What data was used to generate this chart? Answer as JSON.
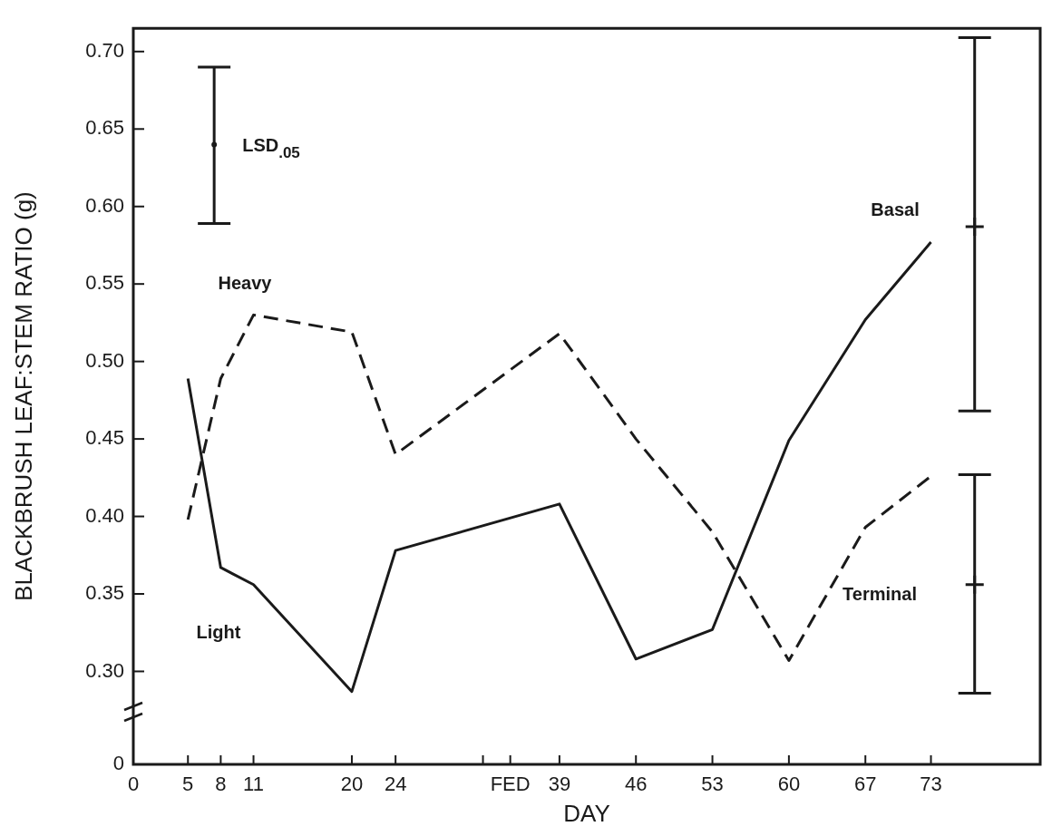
{
  "chart_data": {
    "type": "line",
    "xlabel": "DAY",
    "ylabel": "BLACKBRUSH LEAF:STEM RATIO (g)",
    "xlim": [
      0,
      83
    ],
    "ylim": [
      0.24,
      0.715
    ],
    "xticks": [
      0,
      5,
      8,
      11,
      20,
      24,
      {
        "value": 32,
        "label": null
      },
      {
        "value": 34.5,
        "label": "FED"
      },
      39,
      46,
      53,
      60,
      67,
      73
    ],
    "yticks": [
      {
        "value": 0.24,
        "label": "0"
      },
      {
        "value": 0.3,
        "label": "0.30"
      },
      {
        "value": 0.35,
        "label": "0.35"
      },
      {
        "value": 0.4,
        "label": "0.40"
      },
      {
        "value": 0.45,
        "label": "0.45"
      },
      {
        "value": 0.5,
        "label": "0.50"
      },
      {
        "value": 0.55,
        "label": "0.55"
      },
      {
        "value": 0.6,
        "label": "0.60"
      },
      {
        "value": 0.65,
        "label": "0.65"
      },
      {
        "value": 0.7,
        "label": "0.70"
      }
    ],
    "grid": false,
    "legend": false,
    "series": [
      {
        "type": "line",
        "name": "Light",
        "color": "#1a1a1a",
        "line_style": "solid",
        "marker": "none",
        "x": [
          5,
          8,
          11,
          20,
          24,
          39,
          46,
          53,
          60,
          67,
          73
        ],
        "values": [
          0.489,
          0.367,
          0.356,
          0.287,
          0.378,
          0.408,
          0.308,
          0.327,
          0.449,
          0.527,
          0.577
        ]
      },
      {
        "type": "line",
        "name": "Heavy",
        "color": "#1a1a1a",
        "line_style": "dashed",
        "marker": "none",
        "x": [
          5,
          8,
          11,
          20,
          24,
          39,
          46,
          53,
          60,
          67,
          73
        ],
        "values": [
          0.398,
          0.489,
          0.53,
          0.519,
          0.44,
          0.518,
          0.45,
          0.39,
          0.307,
          0.393,
          0.426
        ]
      },
      {
        "type": "scatter",
        "color": "#1a1a1a",
        "x": [
          7.4
        ],
        "values": [
          0.64
        ],
        "errors": [
          [
            0.589,
            0.69
          ]
        ]
      },
      {
        "type": "scatter",
        "color": "#1a1a1a",
        "marker": "cross",
        "x": [
          77,
          77
        ],
        "values": [
          0.587,
          0.356
        ],
        "errors": [
          [
            0.468,
            0.709
          ],
          [
            0.286,
            0.427
          ]
        ]
      }
    ],
    "annotations": [
      "LSD$_{.05}$",
      "Basal",
      "Terminal"
    ]
  }
}
